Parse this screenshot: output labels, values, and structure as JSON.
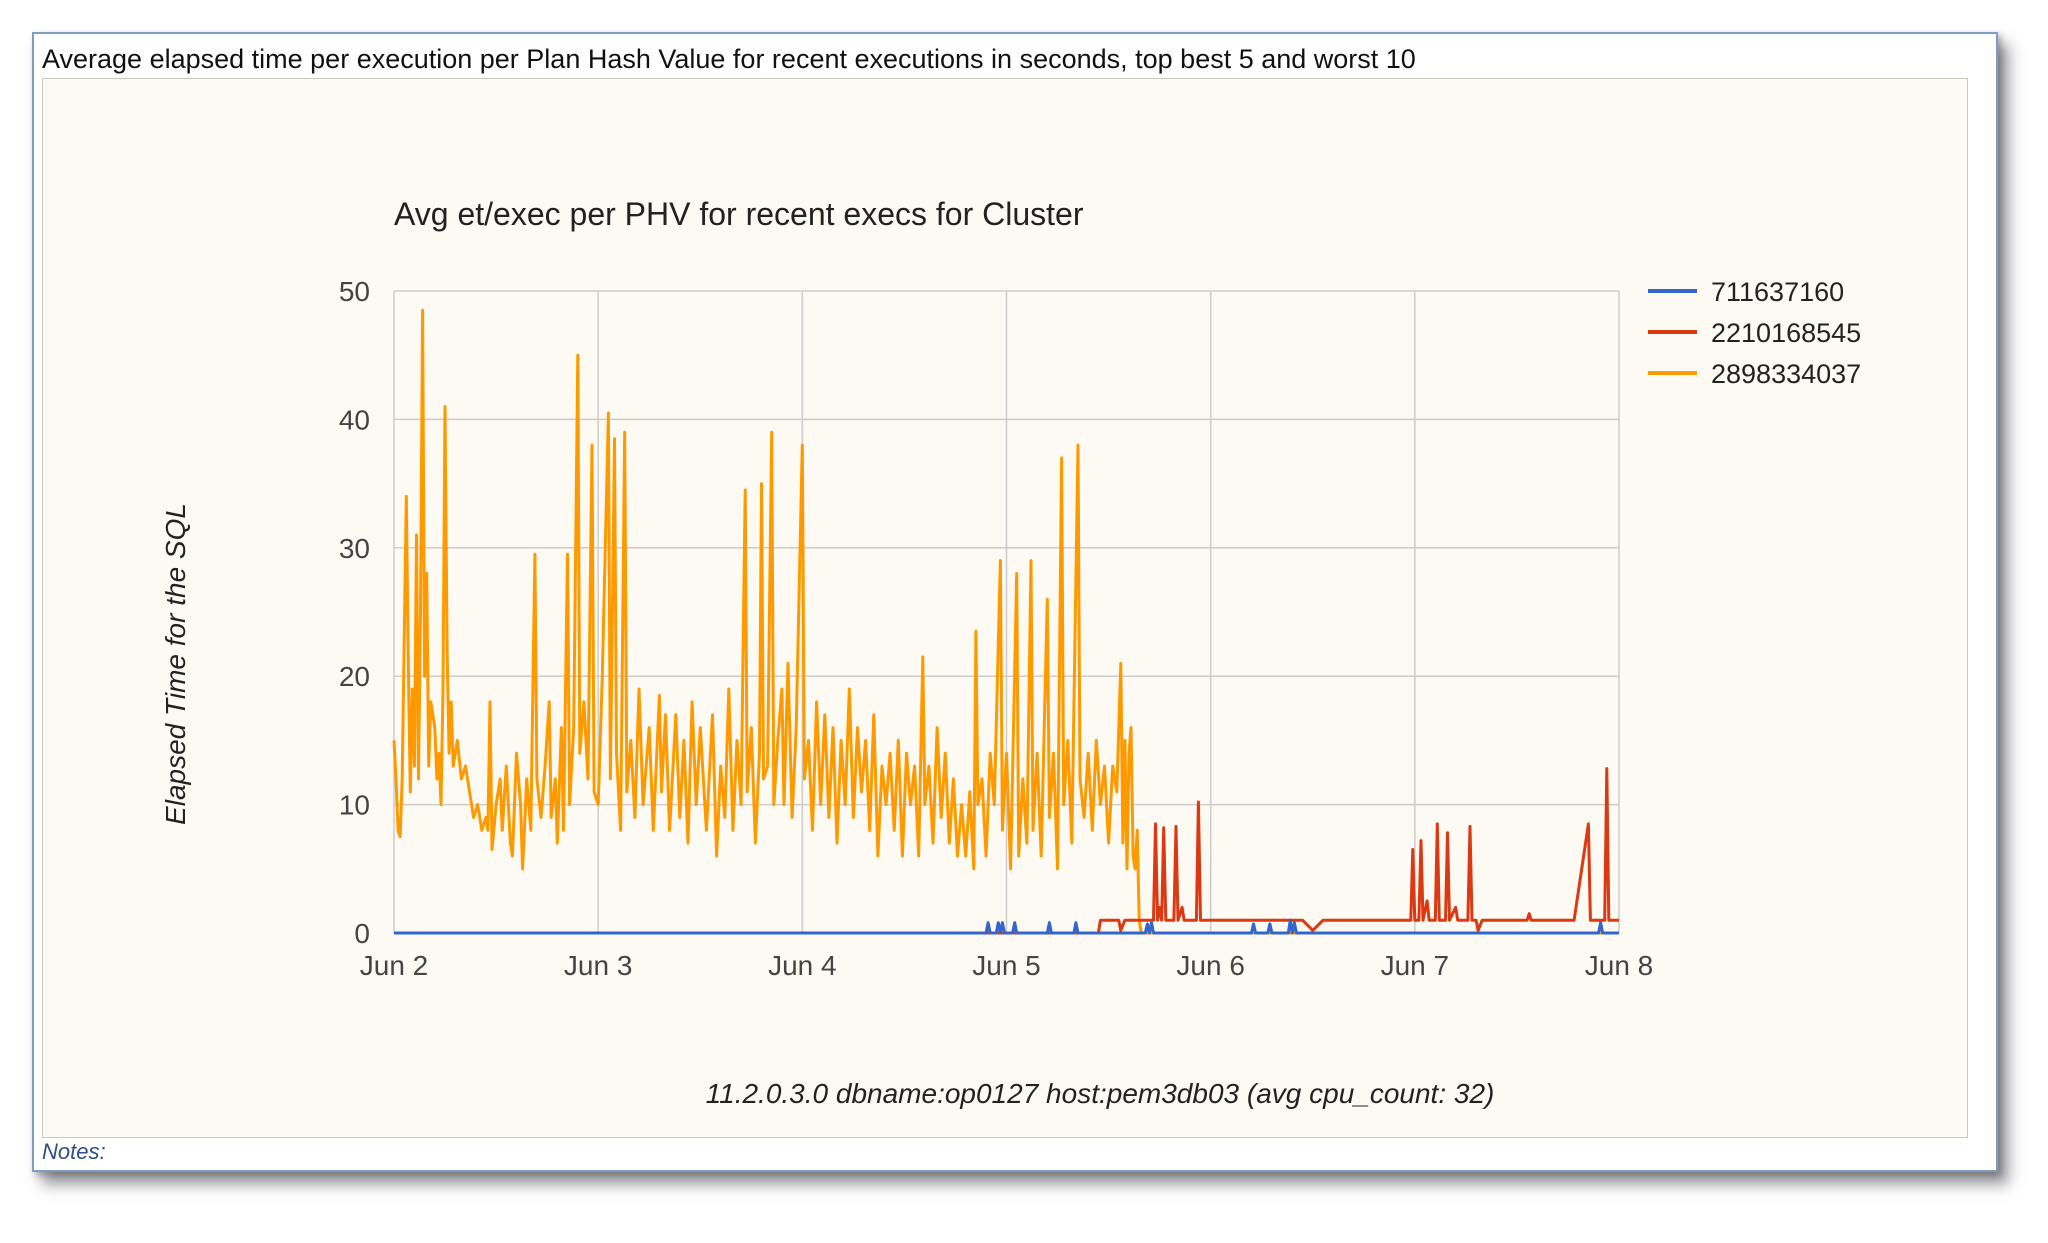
{
  "caption": "Average elapsed time per execution per Plan Hash Value for recent executions in seconds, top best 5 and worst 10",
  "notes": "Notes:",
  "chart_data": {
    "type": "line",
    "title": "Avg et/exec per PHV for recent execs for Cluster",
    "ylabel": "Elapsed Time for the SQL",
    "xlabel": "11.2.0.3.0 dbname:op0127 host:pem3db03 (avg cpu_count: 32)",
    "ylim": [
      0,
      50
    ],
    "yticks": [
      "0",
      "10",
      "20",
      "30",
      "40",
      "50"
    ],
    "xlim": [
      2.0,
      8.0
    ],
    "xticks": [
      {
        "label": "Jun 2",
        "day": 2
      },
      {
        "label": "Jun 3",
        "day": 3
      },
      {
        "label": "Jun 4",
        "day": 4
      },
      {
        "label": "Jun 5",
        "day": 5
      },
      {
        "label": "Jun 6",
        "day": 6
      },
      {
        "label": "Jun 7",
        "day": 7
      },
      {
        "label": "Jun 8",
        "day": 8
      }
    ],
    "grid": true,
    "legend_position": "right",
    "series": [
      {
        "name": "711637160",
        "color": "#3366cc",
        "points": [
          [
            2.0,
            0
          ],
          [
            4.9,
            0
          ],
          [
            4.91,
            0.8
          ],
          [
            4.92,
            0
          ],
          [
            4.95,
            0
          ],
          [
            4.96,
            0.8
          ],
          [
            4.97,
            0
          ],
          [
            4.98,
            0.8
          ],
          [
            4.99,
            0
          ],
          [
            5.03,
            0
          ],
          [
            5.04,
            0.8
          ],
          [
            5.05,
            0
          ],
          [
            5.2,
            0
          ],
          [
            5.21,
            0.8
          ],
          [
            5.22,
            0
          ],
          [
            5.33,
            0
          ],
          [
            5.34,
            0.8
          ],
          [
            5.35,
            0
          ],
          [
            5.68,
            0
          ],
          [
            5.69,
            0.7
          ],
          [
            5.7,
            0
          ],
          [
            5.71,
            0.8
          ],
          [
            5.72,
            0
          ],
          [
            6.2,
            0
          ],
          [
            6.21,
            0.7
          ],
          [
            6.22,
            0
          ],
          [
            6.28,
            0
          ],
          [
            6.29,
            0.7
          ],
          [
            6.3,
            0
          ],
          [
            6.38,
            0
          ],
          [
            6.39,
            1.0
          ],
          [
            6.4,
            0
          ],
          [
            6.41,
            0.8
          ],
          [
            6.42,
            0
          ],
          [
            7.9,
            0
          ],
          [
            7.91,
            0.8
          ],
          [
            7.92,
            0
          ],
          [
            8.0,
            0
          ]
        ]
      },
      {
        "name": "2210168545",
        "color": "#dc3912",
        "points": [
          [
            2.0,
            0
          ],
          [
            5.45,
            0
          ],
          [
            5.46,
            1
          ],
          [
            5.55,
            1
          ],
          [
            5.56,
            0.2
          ],
          [
            5.58,
            1
          ],
          [
            5.72,
            1
          ],
          [
            5.73,
            8.5
          ],
          [
            5.74,
            1
          ],
          [
            5.75,
            2
          ],
          [
            5.76,
            1
          ],
          [
            5.77,
            8.2
          ],
          [
            5.78,
            1
          ],
          [
            5.82,
            1
          ],
          [
            5.83,
            8.3
          ],
          [
            5.84,
            1
          ],
          [
            5.86,
            2
          ],
          [
            5.87,
            1
          ],
          [
            5.93,
            1
          ],
          [
            5.94,
            10.2
          ],
          [
            5.95,
            1
          ],
          [
            6.45,
            1
          ],
          [
            6.5,
            0.2
          ],
          [
            6.55,
            1
          ],
          [
            6.98,
            1
          ],
          [
            6.99,
            6.5
          ],
          [
            7.0,
            1
          ],
          [
            7.02,
            1
          ],
          [
            7.03,
            7.2
          ],
          [
            7.04,
            1
          ],
          [
            7.06,
            2.5
          ],
          [
            7.07,
            1
          ],
          [
            7.1,
            1
          ],
          [
            7.11,
            8.5
          ],
          [
            7.12,
            1
          ],
          [
            7.15,
            1
          ],
          [
            7.16,
            7.8
          ],
          [
            7.17,
            1
          ],
          [
            7.2,
            2
          ],
          [
            7.21,
            1
          ],
          [
            7.26,
            1
          ],
          [
            7.27,
            8.3
          ],
          [
            7.28,
            1
          ],
          [
            7.3,
            1
          ],
          [
            7.31,
            0.2
          ],
          [
            7.33,
            1
          ],
          [
            7.55,
            1
          ],
          [
            7.56,
            1.5
          ],
          [
            7.57,
            1
          ],
          [
            7.78,
            1
          ],
          [
            7.85,
            8.5
          ],
          [
            7.86,
            1
          ],
          [
            7.93,
            1
          ],
          [
            7.94,
            12.8
          ],
          [
            7.95,
            1
          ],
          [
            8.0,
            1
          ]
        ]
      },
      {
        "name": "2898334037",
        "color": "#ff9900",
        "points": [
          [
            2.0,
            15
          ],
          [
            2.01,
            12
          ],
          [
            2.02,
            8
          ],
          [
            2.03,
            7.5
          ],
          [
            2.04,
            12
          ],
          [
            2.06,
            34
          ],
          [
            2.07,
            21
          ],
          [
            2.08,
            11
          ],
          [
            2.09,
            19
          ],
          [
            2.1,
            13
          ],
          [
            2.11,
            31
          ],
          [
            2.12,
            12
          ],
          [
            2.13,
            25
          ],
          [
            2.14,
            48.5
          ],
          [
            2.15,
            20
          ],
          [
            2.16,
            28
          ],
          [
            2.17,
            13
          ],
          [
            2.18,
            18
          ],
          [
            2.2,
            16
          ],
          [
            2.21,
            12
          ],
          [
            2.22,
            14
          ],
          [
            2.23,
            10
          ],
          [
            2.24,
            19
          ],
          [
            2.25,
            41
          ],
          [
            2.26,
            22
          ],
          [
            2.27,
            14
          ],
          [
            2.28,
            18
          ],
          [
            2.29,
            13
          ],
          [
            2.31,
            15
          ],
          [
            2.33,
            12
          ],
          [
            2.35,
            13
          ],
          [
            2.37,
            11
          ],
          [
            2.39,
            9
          ],
          [
            2.41,
            10
          ],
          [
            2.43,
            8
          ],
          [
            2.45,
            9
          ],
          [
            2.46,
            8
          ],
          [
            2.47,
            18
          ],
          [
            2.48,
            6.5
          ],
          [
            2.5,
            10
          ],
          [
            2.52,
            12
          ],
          [
            2.53,
            8
          ],
          [
            2.55,
            13
          ],
          [
            2.57,
            7
          ],
          [
            2.58,
            6
          ],
          [
            2.6,
            14
          ],
          [
            2.62,
            10
          ],
          [
            2.63,
            5
          ],
          [
            2.65,
            12
          ],
          [
            2.67,
            8
          ],
          [
            2.69,
            29.5
          ],
          [
            2.7,
            12
          ],
          [
            2.72,
            9
          ],
          [
            2.74,
            13
          ],
          [
            2.76,
            18
          ],
          [
            2.77,
            9
          ],
          [
            2.79,
            12
          ],
          [
            2.8,
            7
          ],
          [
            2.82,
            16
          ],
          [
            2.83,
            8
          ],
          [
            2.85,
            29.5
          ],
          [
            2.86,
            10
          ],
          [
            2.88,
            16
          ],
          [
            2.9,
            45
          ],
          [
            2.91,
            14
          ],
          [
            2.93,
            18
          ],
          [
            2.95,
            12
          ],
          [
            2.97,
            38
          ],
          [
            2.98,
            11
          ],
          [
            3.0,
            10
          ],
          [
            3.02,
            20
          ],
          [
            3.05,
            40.5
          ],
          [
            3.06,
            12
          ],
          [
            3.08,
            38.5
          ],
          [
            3.09,
            14
          ],
          [
            3.11,
            8
          ],
          [
            3.13,
            39
          ],
          [
            3.14,
            11
          ],
          [
            3.16,
            15
          ],
          [
            3.18,
            9
          ],
          [
            3.2,
            19
          ],
          [
            3.22,
            10
          ],
          [
            3.25,
            16
          ],
          [
            3.27,
            8
          ],
          [
            3.3,
            18.5
          ],
          [
            3.31,
            11
          ],
          [
            3.33,
            17
          ],
          [
            3.35,
            8
          ],
          [
            3.38,
            17
          ],
          [
            3.4,
            9
          ],
          [
            3.42,
            15
          ],
          [
            3.44,
            7
          ],
          [
            3.46,
            18
          ],
          [
            3.48,
            10
          ],
          [
            3.5,
            16
          ],
          [
            3.53,
            8
          ],
          [
            3.56,
            17
          ],
          [
            3.58,
            6
          ],
          [
            3.6,
            13
          ],
          [
            3.62,
            9
          ],
          [
            3.64,
            19
          ],
          [
            3.66,
            8
          ],
          [
            3.68,
            15
          ],
          [
            3.7,
            10
          ],
          [
            3.72,
            34.5
          ],
          [
            3.73,
            11
          ],
          [
            3.75,
            16
          ],
          [
            3.77,
            7
          ],
          [
            3.79,
            14
          ],
          [
            3.8,
            35
          ],
          [
            3.81,
            12
          ],
          [
            3.83,
            13
          ],
          [
            3.85,
            39
          ],
          [
            3.86,
            10
          ],
          [
            3.88,
            15
          ],
          [
            3.9,
            19
          ],
          [
            3.91,
            10
          ],
          [
            3.93,
            21
          ],
          [
            3.95,
            9
          ],
          [
            3.97,
            16
          ],
          [
            4.0,
            38
          ],
          [
            4.01,
            12
          ],
          [
            4.03,
            15
          ],
          [
            4.05,
            8
          ],
          [
            4.07,
            18
          ],
          [
            4.09,
            10
          ],
          [
            4.11,
            17
          ],
          [
            4.13,
            9
          ],
          [
            4.15,
            16
          ],
          [
            4.17,
            7
          ],
          [
            4.19,
            15
          ],
          [
            4.21,
            10
          ],
          [
            4.23,
            19
          ],
          [
            4.25,
            9
          ],
          [
            4.27,
            16
          ],
          [
            4.29,
            11
          ],
          [
            4.31,
            15
          ],
          [
            4.33,
            8
          ],
          [
            4.35,
            17
          ],
          [
            4.37,
            6
          ],
          [
            4.39,
            13
          ],
          [
            4.41,
            10
          ],
          [
            4.43,
            14
          ],
          [
            4.45,
            8
          ],
          [
            4.47,
            15
          ],
          [
            4.49,
            6
          ],
          [
            4.51,
            14
          ],
          [
            4.53,
            10
          ],
          [
            4.55,
            13
          ],
          [
            4.57,
            6
          ],
          [
            4.59,
            21.5
          ],
          [
            4.6,
            10
          ],
          [
            4.62,
            13
          ],
          [
            4.64,
            7
          ],
          [
            4.66,
            16
          ],
          [
            4.68,
            9
          ],
          [
            4.7,
            14
          ],
          [
            4.72,
            7
          ],
          [
            4.74,
            12
          ],
          [
            4.76,
            6
          ],
          [
            4.78,
            10
          ],
          [
            4.8,
            6
          ],
          [
            4.82,
            11
          ],
          [
            4.84,
            5
          ],
          [
            4.85,
            23.5
          ],
          [
            4.86,
            10
          ],
          [
            4.88,
            12
          ],
          [
            4.9,
            6
          ],
          [
            4.92,
            14
          ],
          [
            4.94,
            10
          ],
          [
            4.97,
            29
          ],
          [
            4.98,
            8
          ],
          [
            5.0,
            14
          ],
          [
            5.02,
            5
          ],
          [
            5.05,
            28
          ],
          [
            5.06,
            6
          ],
          [
            5.08,
            12
          ],
          [
            5.1,
            7
          ],
          [
            5.12,
            29
          ],
          [
            5.13,
            8
          ],
          [
            5.15,
            14
          ],
          [
            5.17,
            6
          ],
          [
            5.2,
            26
          ],
          [
            5.21,
            9
          ],
          [
            5.23,
            14
          ],
          [
            5.25,
            5
          ],
          [
            5.27,
            37
          ],
          [
            5.28,
            10
          ],
          [
            5.3,
            15
          ],
          [
            5.32,
            7
          ],
          [
            5.35,
            38
          ],
          [
            5.36,
            12
          ],
          [
            5.38,
            9
          ],
          [
            5.4,
            14
          ],
          [
            5.42,
            8
          ],
          [
            5.44,
            15
          ],
          [
            5.46,
            10
          ],
          [
            5.48,
            13
          ],
          [
            5.5,
            7
          ],
          [
            5.52,
            13
          ],
          [
            5.54,
            11
          ],
          [
            5.56,
            21
          ],
          [
            5.57,
            7
          ],
          [
            5.58,
            15
          ],
          [
            5.59,
            5
          ],
          [
            5.6,
            14
          ],
          [
            5.61,
            16
          ],
          [
            5.62,
            6
          ],
          [
            5.63,
            5
          ],
          [
            5.64,
            8
          ],
          [
            5.65,
            1
          ],
          [
            5.66,
            0
          ],
          [
            8.0,
            0
          ]
        ]
      }
    ]
  }
}
